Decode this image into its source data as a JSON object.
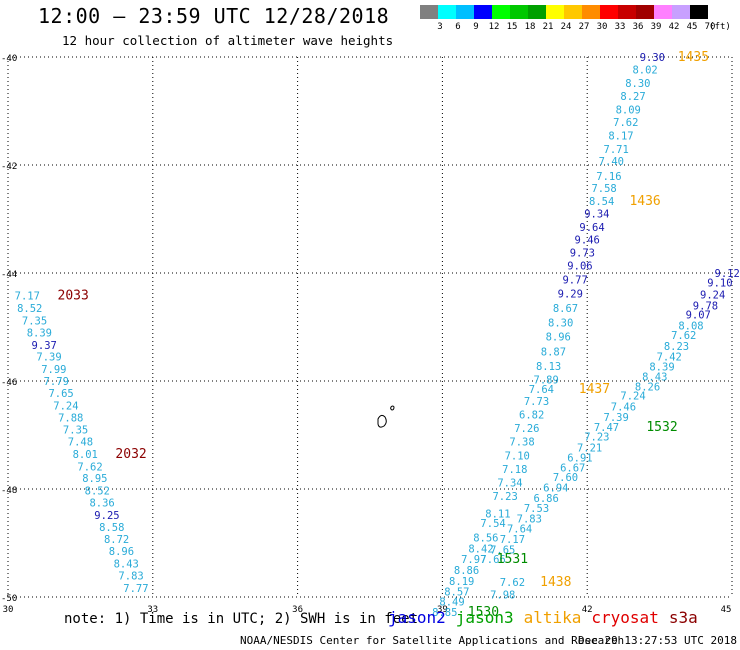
{
  "header": {
    "title": "12:00 — 23:59 UTC 12/28/2018",
    "subtitle": "12 hour collection of altimeter wave heights"
  },
  "legend": {
    "unit": "(ft)",
    "colors": [
      "#808080",
      "#00ffff",
      "#00bfff",
      "#0000ff",
      "#00ff00",
      "#00c800",
      "#00a000",
      "#ffff00",
      "#ffc800",
      "#ff8c00",
      "#ff0000",
      "#c80000",
      "#a00000",
      "#ff80ff",
      "#c8a0ff",
      "#000000"
    ],
    "labels": [
      "3",
      "6",
      "9",
      "12",
      "15",
      "18",
      "21",
      "24",
      "27",
      "30",
      "33",
      "36",
      "39",
      "42",
      "45",
      "70"
    ]
  },
  "map": {
    "lon_ticks": [
      "30",
      "33",
      "36",
      "39",
      "42",
      "45"
    ],
    "lat_ticks": [
      "-40",
      "-42",
      "-44",
      "-46",
      "-48",
      "-50"
    ],
    "colors": {
      "cyan": "#29abd8",
      "navy": "#1a1ab0",
      "orange": "#f0a000",
      "green": "#008c00",
      "darkred": "#8b0000"
    },
    "labels": [
      {
        "t": "9.30",
        "lon": 43.35,
        "lat": -40.0,
        "c": "navy"
      },
      {
        "t": "1435",
        "lon": 44.2,
        "lat": -40.0,
        "c": "orange",
        "size": 13
      },
      {
        "t": "8.02",
        "lon": 43.2,
        "lat": -40.23,
        "c": "cyan"
      },
      {
        "t": "8.30",
        "lon": 43.05,
        "lat": -40.48,
        "c": "cyan"
      },
      {
        "t": "8.27",
        "lon": 42.95,
        "lat": -40.72,
        "c": "cyan"
      },
      {
        "t": "8.09",
        "lon": 42.85,
        "lat": -40.97,
        "c": "cyan"
      },
      {
        "t": "7.62",
        "lon": 42.8,
        "lat": -41.2,
        "c": "cyan"
      },
      {
        "t": "8.17",
        "lon": 42.7,
        "lat": -41.45,
        "c": "cyan"
      },
      {
        "t": "7.71",
        "lon": 42.6,
        "lat": -41.7,
        "c": "cyan"
      },
      {
        "t": "7.40",
        "lon": 42.5,
        "lat": -41.93,
        "c": "cyan"
      },
      {
        "t": "7.16",
        "lon": 42.45,
        "lat": -42.2,
        "c": "cyan"
      },
      {
        "t": "7.58",
        "lon": 42.35,
        "lat": -42.43,
        "c": "cyan"
      },
      {
        "t": "8.54",
        "lon": 42.3,
        "lat": -42.67,
        "c": "cyan"
      },
      {
        "t": "1436",
        "lon": 43.2,
        "lat": -42.67,
        "c": "orange",
        "size": 13
      },
      {
        "t": "9.34",
        "lon": 42.2,
        "lat": -42.9,
        "c": "navy"
      },
      {
        "t": "9.64",
        "lon": 42.1,
        "lat": -43.15,
        "c": "navy"
      },
      {
        "t": "9.46",
        "lon": 42.0,
        "lat": -43.38,
        "c": "navy"
      },
      {
        "t": "9.73",
        "lon": 41.9,
        "lat": -43.62,
        "c": "navy"
      },
      {
        "t": "9.06",
        "lon": 41.85,
        "lat": -43.86,
        "c": "navy"
      },
      {
        "t": "9.77",
        "lon": 41.75,
        "lat": -44.12,
        "c": "navy"
      },
      {
        "t": "9.29",
        "lon": 41.65,
        "lat": -44.38,
        "c": "navy"
      },
      {
        "t": "8.67",
        "lon": 41.55,
        "lat": -44.65,
        "c": "cyan"
      },
      {
        "t": "8.30",
        "lon": 41.45,
        "lat": -44.92,
        "c": "cyan"
      },
      {
        "t": "8.96",
        "lon": 41.4,
        "lat": -45.18,
        "c": "cyan"
      },
      {
        "t": "8.87",
        "lon": 41.3,
        "lat": -45.45,
        "c": "cyan"
      },
      {
        "t": "8.13",
        "lon": 41.2,
        "lat": -45.72,
        "c": "cyan"
      },
      {
        "t": "7.89",
        "lon": 41.15,
        "lat": -45.97,
        "c": "cyan"
      },
      {
        "t": "7.64",
        "lon": 41.05,
        "lat": -46.15,
        "c": "cyan"
      },
      {
        "t": "1437",
        "lon": 42.15,
        "lat": -46.15,
        "c": "orange",
        "size": 13
      },
      {
        "t": "7.73",
        "lon": 40.95,
        "lat": -46.37,
        "c": "cyan"
      },
      {
        "t": "6.82",
        "lon": 40.85,
        "lat": -46.62,
        "c": "cyan"
      },
      {
        "t": "7.26",
        "lon": 40.75,
        "lat": -46.87,
        "c": "cyan"
      },
      {
        "t": "7.38",
        "lon": 40.65,
        "lat": -47.12,
        "c": "cyan"
      },
      {
        "t": "7.10",
        "lon": 40.55,
        "lat": -47.38,
        "c": "cyan"
      },
      {
        "t": "7.18",
        "lon": 40.5,
        "lat": -47.63,
        "c": "cyan"
      },
      {
        "t": "7.34",
        "lon": 40.4,
        "lat": -47.88,
        "c": "cyan"
      },
      {
        "t": "7.23",
        "lon": 40.3,
        "lat": -48.13,
        "c": "cyan"
      },
      {
        "t": "8.11",
        "lon": 40.15,
        "lat": -48.45,
        "c": "cyan"
      },
      {
        "t": "7.54",
        "lon": 40.05,
        "lat": -48.63,
        "c": "cyan"
      },
      {
        "t": "8.56",
        "lon": 39.9,
        "lat": -48.9,
        "c": "cyan"
      },
      {
        "t": "8.42",
        "lon": 39.8,
        "lat": -49.1,
        "c": "cyan"
      },
      {
        "t": "7.97",
        "lon": 39.65,
        "lat": -49.3,
        "c": "cyan"
      },
      {
        "t": "8.86",
        "lon": 39.5,
        "lat": -49.5,
        "c": "cyan"
      },
      {
        "t": "8.19",
        "lon": 39.4,
        "lat": -49.7,
        "c": "cyan"
      },
      {
        "t": "8.57",
        "lon": 39.3,
        "lat": -49.9,
        "c": "cyan"
      },
      {
        "t": "8.49",
        "lon": 39.2,
        "lat": -50.08,
        "c": "cyan"
      },
      {
        "t": "8.85",
        "lon": 39.05,
        "lat": -50.28,
        "c": "cyan"
      },
      {
        "t": "1530",
        "lon": 39.85,
        "lat": -50.28,
        "c": "green",
        "size": 13
      },
      {
        "t": "9.12",
        "lon": 44.9,
        "lat": -44.0,
        "c": "navy"
      },
      {
        "t": "9.10",
        "lon": 44.75,
        "lat": -44.18,
        "c": "navy"
      },
      {
        "t": "9.24",
        "lon": 44.6,
        "lat": -44.4,
        "c": "navy"
      },
      {
        "t": "9.78",
        "lon": 44.45,
        "lat": -44.6,
        "c": "navy"
      },
      {
        "t": "9.07",
        "lon": 44.3,
        "lat": -44.77,
        "c": "navy"
      },
      {
        "t": "8.08",
        "lon": 44.15,
        "lat": -44.97,
        "c": "cyan"
      },
      {
        "t": "7.62",
        "lon": 44.0,
        "lat": -45.15,
        "c": "cyan"
      },
      {
        "t": "8.23",
        "lon": 43.85,
        "lat": -45.35,
        "c": "cyan"
      },
      {
        "t": "7.42",
        "lon": 43.7,
        "lat": -45.55,
        "c": "cyan"
      },
      {
        "t": "8.39",
        "lon": 43.55,
        "lat": -45.73,
        "c": "cyan"
      },
      {
        "t": "8.43",
        "lon": 43.4,
        "lat": -45.92,
        "c": "cyan"
      },
      {
        "t": "8.26",
        "lon": 43.25,
        "lat": -46.1,
        "c": "cyan"
      },
      {
        "t": "7.24",
        "lon": 42.95,
        "lat": -46.27,
        "c": "cyan"
      },
      {
        "t": "7.46",
        "lon": 42.75,
        "lat": -46.47,
        "c": "cyan"
      },
      {
        "t": "7.39",
        "lon": 42.6,
        "lat": -46.67,
        "c": "cyan"
      },
      {
        "t": "7.47",
        "lon": 42.4,
        "lat": -46.85,
        "c": "cyan"
      },
      {
        "t": "1532",
        "lon": 43.55,
        "lat": -46.85,
        "c": "green",
        "size": 13
      },
      {
        "t": "7.23",
        "lon": 42.2,
        "lat": -47.03,
        "c": "cyan"
      },
      {
        "t": "7.21",
        "lon": 42.05,
        "lat": -47.23,
        "c": "cyan"
      },
      {
        "t": "6.91",
        "lon": 41.85,
        "lat": -47.42,
        "c": "cyan"
      },
      {
        "t": "6.67",
        "lon": 41.7,
        "lat": -47.6,
        "c": "cyan"
      },
      {
        "t": "7.60",
        "lon": 41.55,
        "lat": -47.78,
        "c": "cyan"
      },
      {
        "t": "6.94",
        "lon": 41.35,
        "lat": -47.97,
        "c": "cyan"
      },
      {
        "t": "6.86",
        "lon": 41.15,
        "lat": -48.17,
        "c": "cyan"
      },
      {
        "t": "7.53",
        "lon": 40.95,
        "lat": -48.35,
        "c": "cyan"
      },
      {
        "t": "7.83",
        "lon": 40.8,
        "lat": -48.55,
        "c": "cyan"
      },
      {
        "t": "7.64",
        "lon": 40.6,
        "lat": -48.73,
        "c": "cyan"
      },
      {
        "t": "7.17",
        "lon": 40.45,
        "lat": -48.93,
        "c": "cyan"
      },
      {
        "t": "7.65",
        "lon": 40.25,
        "lat": -49.12,
        "c": "cyan"
      },
      {
        "t": "7.66",
        "lon": 40.05,
        "lat": -49.3,
        "c": "cyan"
      },
      {
        "t": "1531",
        "lon": 40.45,
        "lat": -49.3,
        "c": "green",
        "size": 13
      },
      {
        "t": "7.62",
        "lon": 40.45,
        "lat": -49.72,
        "c": "cyan"
      },
      {
        "t": "1438",
        "lon": 41.35,
        "lat": -49.72,
        "c": "orange",
        "size": 13
      },
      {
        "t": "7.98",
        "lon": 40.25,
        "lat": -49.95,
        "c": "cyan"
      },
      {
        "t": "7.17",
        "lon": 30.4,
        "lat": -44.42,
        "c": "cyan"
      },
      {
        "t": "2033",
        "lon": 31.35,
        "lat": -44.42,
        "c": "darkred",
        "size": 13
      },
      {
        "t": "8.52",
        "lon": 30.45,
        "lat": -44.65,
        "c": "cyan"
      },
      {
        "t": "7.35",
        "lon": 30.55,
        "lat": -44.88,
        "c": "cyan"
      },
      {
        "t": "8.39",
        "lon": 30.65,
        "lat": -45.1,
        "c": "cyan"
      },
      {
        "t": "9.37",
        "lon": 30.75,
        "lat": -45.33,
        "c": "navy"
      },
      {
        "t": "7.39",
        "lon": 30.85,
        "lat": -45.55,
        "c": "cyan"
      },
      {
        "t": "7.99",
        "lon": 30.95,
        "lat": -45.78,
        "c": "cyan"
      },
      {
        "t": "7.79",
        "lon": 31.0,
        "lat": -46.0,
        "c": "cyan"
      },
      {
        "t": "7.65",
        "lon": 31.1,
        "lat": -46.22,
        "c": "cyan"
      },
      {
        "t": "7.24",
        "lon": 31.2,
        "lat": -46.45,
        "c": "cyan"
      },
      {
        "t": "7.88",
        "lon": 31.3,
        "lat": -46.68,
        "c": "cyan"
      },
      {
        "t": "7.35",
        "lon": 31.4,
        "lat": -46.9,
        "c": "cyan"
      },
      {
        "t": "7.48",
        "lon": 31.5,
        "lat": -47.12,
        "c": "cyan"
      },
      {
        "t": "8.01",
        "lon": 31.6,
        "lat": -47.35,
        "c": "cyan"
      },
      {
        "t": "2032",
        "lon": 32.55,
        "lat": -47.35,
        "c": "darkred",
        "size": 13
      },
      {
        "t": "7.62",
        "lon": 31.7,
        "lat": -47.58,
        "c": "cyan"
      },
      {
        "t": "8.95",
        "lon": 31.8,
        "lat": -47.8,
        "c": "cyan"
      },
      {
        "t": "8.52",
        "lon": 31.85,
        "lat": -48.03,
        "c": "cyan"
      },
      {
        "t": "8.36",
        "lon": 31.95,
        "lat": -48.25,
        "c": "cyan"
      },
      {
        "t": "9.25",
        "lon": 32.05,
        "lat": -48.48,
        "c": "navy"
      },
      {
        "t": "8.58",
        "lon": 32.15,
        "lat": -48.7,
        "c": "cyan"
      },
      {
        "t": "8.72",
        "lon": 32.25,
        "lat": -48.93,
        "c": "cyan"
      },
      {
        "t": "8.96",
        "lon": 32.35,
        "lat": -49.15,
        "c": "cyan"
      },
      {
        "t": "8.43",
        "lon": 32.45,
        "lat": -49.38,
        "c": "cyan"
      },
      {
        "t": "7.83",
        "lon": 32.55,
        "lat": -49.6,
        "c": "cyan"
      },
      {
        "t": "7.77",
        "lon": 32.65,
        "lat": -49.83,
        "c": "cyan"
      }
    ]
  },
  "footer": {
    "note": "note: 1) Time is in UTC; 2) SWH is in feet",
    "satellites": [
      {
        "name": "jason2",
        "color": "#0000e0"
      },
      {
        "name": "jason3",
        "color": "#00a000"
      },
      {
        "name": "altika",
        "color": "#f0a000"
      },
      {
        "name": "cryosat",
        "color": "#e00000"
      },
      {
        "name": "s3a",
        "color": "#8b0000"
      }
    ],
    "credit": "NOAA/NESDIS Center for Satellite Applications and Research",
    "timestamp": "Dec 29 13:27:53 UTC 2018"
  }
}
